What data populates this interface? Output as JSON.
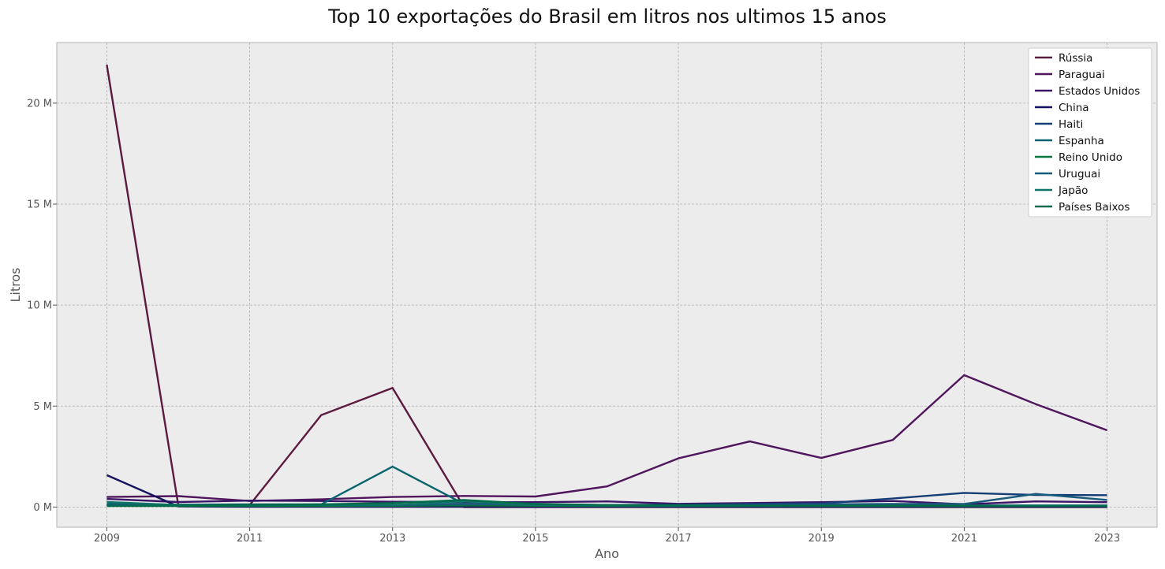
{
  "chart_data": {
    "type": "line",
    "title": "Top 10 exportações do Brasil em litros nos ultimos 15 anos",
    "xlabel": "Ano",
    "ylabel": "Litros",
    "xlim": [
      2008.3,
      2023.7
    ],
    "ylim": [
      -1000000,
      23000000
    ],
    "x_ticks": [
      2009,
      2011,
      2013,
      2015,
      2017,
      2019,
      2021,
      2023
    ],
    "y_ticks": [
      0,
      5000000,
      10000000,
      15000000,
      20000000
    ],
    "y_tick_labels": [
      "0 M",
      "5 M",
      "10 M",
      "15 M",
      "20 M"
    ],
    "grid": true,
    "legend_position": "upper-right",
    "x": [
      2009,
      2010,
      2011,
      2012,
      2013,
      2014,
      2015,
      2016,
      2017,
      2018,
      2019,
      2020,
      2021,
      2022,
      2023
    ],
    "series": [
      {
        "name": "Rússia",
        "color": "#5c1a3f",
        "values": [
          21900000,
          100000,
          100000,
          4550000,
          5900000,
          0,
          0,
          0,
          0,
          0,
          0,
          0,
          0,
          0,
          0
        ]
      },
      {
        "name": "Paraguai",
        "color": "#4f155d",
        "values": [
          500000,
          540000,
          300000,
          380000,
          500000,
          550000,
          520000,
          1020000,
          2410000,
          3250000,
          2430000,
          3320000,
          6530000,
          5100000,
          3800000
        ]
      },
      {
        "name": "Estados Unidos",
        "color": "#3a1566",
        "values": [
          400000,
          250000,
          320000,
          300000,
          260000,
          240000,
          240000,
          280000,
          160000,
          200000,
          240000,
          300000,
          130000,
          280000,
          240000
        ]
      },
      {
        "name": "China",
        "color": "#14125e",
        "values": [
          1580000,
          30000,
          10000,
          10000,
          10000,
          10000,
          10000,
          10000,
          10000,
          10000,
          10000,
          10000,
          10000,
          10000,
          10000
        ]
      },
      {
        "name": "Haiti",
        "color": "#153d75",
        "values": [
          100000,
          80000,
          100000,
          80000,
          80000,
          100000,
          100000,
          100000,
          120000,
          150000,
          180000,
          420000,
          700000,
          600000,
          590000
        ]
      },
      {
        "name": "Espanha",
        "color": "#0a6470",
        "values": [
          150000,
          120000,
          130000,
          130000,
          2000000,
          150000,
          130000,
          100000,
          80000,
          100000,
          80000,
          100000,
          80000,
          80000,
          80000
        ]
      },
      {
        "name": "Reino Unido",
        "color": "#0b7540",
        "values": [
          50000,
          50000,
          50000,
          50000,
          60000,
          80000,
          60000,
          50000,
          50000,
          50000,
          50000,
          50000,
          50000,
          50000,
          50000
        ]
      },
      {
        "name": "Uruguai",
        "color": "#175a7a",
        "values": [
          100000,
          80000,
          100000,
          100000,
          100000,
          150000,
          120000,
          100000,
          90000,
          100000,
          130000,
          150000,
          150000,
          650000,
          350000
        ]
      },
      {
        "name": "Japão",
        "color": "#10746a",
        "values": [
          250000,
          100000,
          80000,
          100000,
          100000,
          280000,
          100000,
          80000,
          60000,
          60000,
          60000,
          60000,
          60000,
          60000,
          60000
        ]
      },
      {
        "name": "Países Baixos",
        "color": "#006a4a",
        "values": [
          60000,
          70000,
          100000,
          130000,
          200000,
          350000,
          150000,
          100000,
          80000,
          70000,
          60000,
          60000,
          50000,
          50000,
          50000
        ]
      }
    ]
  }
}
